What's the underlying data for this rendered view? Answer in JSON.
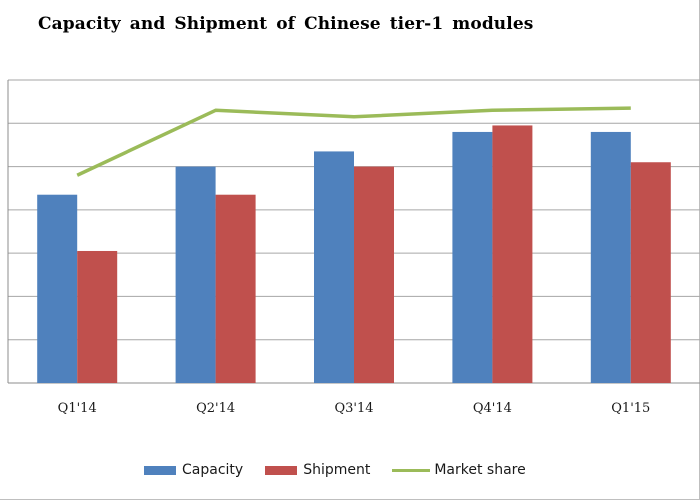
{
  "chart_data": {
    "type": "bar",
    "title": "Capacity and Shipment of Chinese tier-1 modules",
    "categories": [
      "Q1'14",
      "Q2'14",
      "Q3'14",
      "Q4'14",
      "Q1'15"
    ],
    "ylim": [
      0,
      7
    ],
    "grid": true,
    "series": [
      {
        "name": "Capacity",
        "type": "bar",
        "color": "#4f81bd",
        "values": [
          4.35,
          5.0,
          5.35,
          5.8,
          5.8
        ]
      },
      {
        "name": "Shipment",
        "type": "bar",
        "color": "#c0504d",
        "values": [
          3.05,
          4.35,
          5.0,
          5.95,
          5.1
        ]
      },
      {
        "name": "Market share",
        "type": "line",
        "color": "#9bbb59",
        "values": [
          4.8,
          6.3,
          6.15,
          6.3,
          6.35
        ]
      }
    ],
    "legend": "bottom"
  }
}
